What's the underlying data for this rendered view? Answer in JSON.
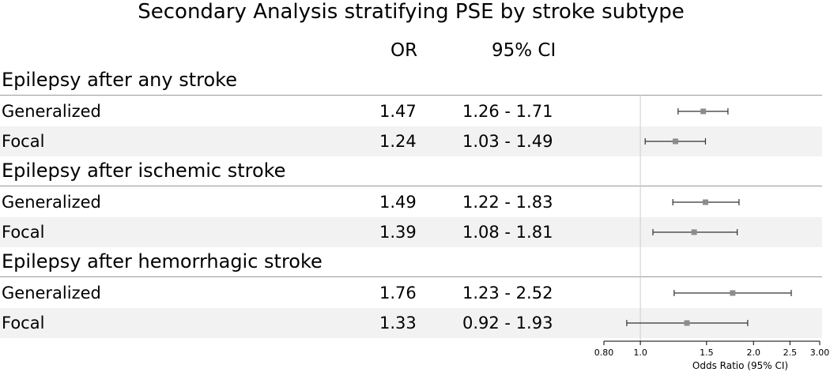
{
  "title": "Secondary Analysis stratifying PSE by stroke subtype",
  "columns": {
    "or": "OR",
    "ci": "95% CI"
  },
  "chart_data": {
    "type": "forest",
    "title": "Secondary Analysis stratifying PSE by stroke subtype",
    "xlabel": "Odds Ratio (95% CI)",
    "xscale": "log",
    "xlim": [
      0.8,
      3.0
    ],
    "xticks": [
      "0.80",
      "1.0",
      "1.5",
      "2.0",
      "2.5",
      "3.00"
    ],
    "xtick_values": [
      0.8,
      1.0,
      1.5,
      2.0,
      2.5,
      3.0
    ],
    "reference_line": 1.0,
    "groups": [
      {
        "label": "Epilepsy after any stroke",
        "rows": [
          {
            "label": "Generalized",
            "or_text": "1.47",
            "ci_text": "1.26 - 1.71",
            "or": 1.47,
            "lo": 1.26,
            "hi": 1.71
          },
          {
            "label": "Focal",
            "or_text": "1.24",
            "ci_text": "1.03 - 1.49",
            "or": 1.24,
            "lo": 1.03,
            "hi": 1.49
          }
        ]
      },
      {
        "label": "Epilepsy after ischemic stroke",
        "rows": [
          {
            "label": "Generalized",
            "or_text": "1.49",
            "ci_text": "1.22 - 1.83",
            "or": 1.49,
            "lo": 1.22,
            "hi": 1.83
          },
          {
            "label": "Focal",
            "or_text": "1.39",
            "ci_text": "1.08 - 1.81",
            "or": 1.39,
            "lo": 1.08,
            "hi": 1.81
          }
        ]
      },
      {
        "label": "Epilepsy after hemorrhagic stroke",
        "rows": [
          {
            "label": "Generalized",
            "or_text": "1.76",
            "ci_text": "1.23 - 2.52",
            "or": 1.76,
            "lo": 1.23,
            "hi": 2.52
          },
          {
            "label": "Focal",
            "or_text": "1.33",
            "ci_text": "0.92 - 1.93",
            "or": 1.33,
            "lo": 0.92,
            "hi": 1.93
          }
        ]
      }
    ],
    "colors": {
      "marker": "#8c8c8c",
      "whisker": "#333333",
      "reference": "#cccccc",
      "alt_row": "#f2f2f2"
    }
  }
}
